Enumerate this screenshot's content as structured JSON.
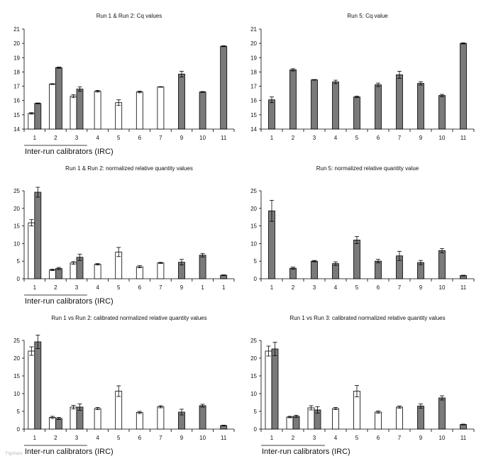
{
  "figure": {
    "watermark": "Figshare"
  },
  "colors": {
    "run_a": "#ffffff",
    "run_b": "#7a7a7a",
    "stroke": "#000000"
  },
  "chart_data": [
    {
      "id": "top-left",
      "type": "bar",
      "title": "Run 1 & Run 2: Cq values",
      "ylim": [
        14,
        21
      ],
      "yticks": [
        14,
        15,
        16,
        17,
        18,
        19,
        20,
        21
      ],
      "categories": [
        "1",
        "2",
        "3",
        "4",
        "5",
        "6",
        "7",
        "9",
        "10",
        "11"
      ],
      "series": [
        {
          "name": "Run 1",
          "color": "white",
          "values": [
            15.1,
            17.15,
            16.3,
            16.65,
            15.85,
            16.6,
            16.95,
            null,
            null,
            null
          ],
          "errors": [
            0.05,
            0.03,
            0.1,
            0.06,
            0.2,
            0.06,
            0.02,
            null,
            null,
            null
          ]
        },
        {
          "name": "Run 2",
          "color": "gray",
          "values": [
            15.8,
            18.3,
            16.8,
            null,
            null,
            null,
            null,
            17.85,
            16.6,
            19.8
          ],
          "errors": [
            0.03,
            0.04,
            0.15,
            null,
            null,
            null,
            null,
            0.2,
            0.03,
            0.03
          ]
        }
      ],
      "bracket_label": "Inter-run calibrators (IRC)",
      "bracket_count": 3
    },
    {
      "id": "top-right",
      "type": "bar",
      "title": "Run 5: Cq value",
      "ylim": [
        14,
        21
      ],
      "yticks": [
        14,
        15,
        16,
        17,
        18,
        19,
        20,
        21
      ],
      "categories": [
        "1",
        "2",
        "3",
        "4",
        "5",
        "6",
        "7",
        "9",
        "10",
        "11"
      ],
      "series": [
        {
          "name": "Run 5",
          "color": "gray",
          "values": [
            16.05,
            18.15,
            17.45,
            17.3,
            16.25,
            17.1,
            17.8,
            17.2,
            16.35,
            20.0
          ],
          "errors": [
            0.2,
            0.08,
            0.02,
            0.12,
            0.05,
            0.12,
            0.25,
            0.12,
            0.08,
            0.04
          ]
        }
      ],
      "bracket_label": "",
      "bracket_count": 0
    },
    {
      "id": "mid-left",
      "type": "bar",
      "title": "Run 1 & Run 2: normalized relative quantity values",
      "ylim": [
        0,
        25
      ],
      "yticks": [
        0,
        5,
        10,
        15,
        20,
        25
      ],
      "categories": [
        "1",
        "2",
        "3",
        "4",
        "5",
        "6",
        "7",
        "9",
        "1",
        "1"
      ],
      "series": [
        {
          "name": "Run 1",
          "color": "white",
          "values": [
            15.9,
            2.5,
            4.5,
            4.1,
            7.6,
            3.4,
            4.5,
            null,
            null,
            null
          ],
          "errors": [
            0.9,
            0.2,
            0.4,
            0.2,
            1.3,
            0.3,
            0.15,
            null,
            null,
            null
          ]
        },
        {
          "name": "Run 2",
          "color": "gray",
          "values": [
            24.6,
            2.9,
            6.1,
            null,
            null,
            null,
            null,
            4.7,
            6.7,
            1.0
          ],
          "errors": [
            1.4,
            0.3,
            0.9,
            null,
            null,
            null,
            null,
            0.8,
            0.5,
            0.1
          ]
        }
      ],
      "bracket_label": "Inter-run calibrators (IRC)",
      "bracket_count": 3
    },
    {
      "id": "mid-right",
      "type": "bar",
      "title": "Run 5: normalized relative quantity value",
      "ylim": [
        0,
        25
      ],
      "yticks": [
        0,
        5,
        10,
        15,
        20,
        25
      ],
      "categories": [
        "1",
        "2",
        "3",
        "4",
        "5",
        "6",
        "7",
        "9",
        "10",
        "11"
      ],
      "series": [
        {
          "name": "Run 5",
          "color": "gray",
          "values": [
            19.3,
            3.0,
            5.0,
            4.3,
            11.0,
            5.0,
            6.5,
            4.6,
            8.0,
            0.9
          ],
          "errors": [
            3.0,
            0.3,
            0.2,
            0.5,
            1.0,
            0.5,
            1.3,
            0.6,
            0.6,
            0.1
          ]
        }
      ],
      "bracket_label": "",
      "bracket_count": 0
    },
    {
      "id": "bottom-left",
      "type": "bar",
      "title": "Run 1 vs Run 2: calibrated  normalized relative quantity values",
      "ylim": [
        0,
        25
      ],
      "yticks": [
        0,
        5,
        10,
        15,
        20,
        25
      ],
      "categories": [
        "1",
        "2",
        "3",
        "4",
        "5",
        "6",
        "7",
        "9",
        "10",
        "11"
      ],
      "series": [
        {
          "name": "Run 1",
          "color": "white",
          "values": [
            22.0,
            3.3,
            6.2,
            5.8,
            10.7,
            4.7,
            6.3,
            null,
            null,
            null
          ],
          "errors": [
            1.2,
            0.3,
            0.5,
            0.3,
            1.5,
            0.3,
            0.3,
            null,
            null,
            null
          ]
        },
        {
          "name": "Run 2",
          "color": "gray",
          "values": [
            24.6,
            3.0,
            6.2,
            null,
            null,
            null,
            null,
            4.8,
            6.6,
            1.0
          ],
          "errors": [
            1.9,
            0.3,
            0.9,
            null,
            null,
            null,
            null,
            0.8,
            0.4,
            0.1
          ]
        }
      ],
      "bracket_label": "Inter-run calibrators (IRC)",
      "bracket_count": 3
    },
    {
      "id": "bottom-right",
      "type": "bar",
      "title": "Run 1 vs Run 3: calibrated  normalized relative quantity values",
      "ylim": [
        0,
        25
      ],
      "yticks": [
        0,
        5,
        10,
        15,
        20,
        25
      ],
      "categories": [
        "1",
        "2",
        "3",
        "4",
        "5",
        "6",
        "7",
        "9",
        "10",
        "11"
      ],
      "series": [
        {
          "name": "Run 1",
          "color": "white",
          "values": [
            22.0,
            3.4,
            6.0,
            5.8,
            10.7,
            4.8,
            6.2,
            null,
            null,
            null
          ],
          "errors": [
            1.4,
            0.2,
            0.6,
            0.3,
            1.6,
            0.3,
            0.3,
            null,
            null,
            null
          ]
        },
        {
          "name": "Run 3",
          "color": "gray",
          "values": [
            22.6,
            3.6,
            5.4,
            null,
            null,
            null,
            null,
            6.5,
            8.8,
            1.3
          ],
          "errors": [
            1.9,
            0.3,
            0.9,
            null,
            null,
            null,
            null,
            0.6,
            0.6,
            0.1
          ]
        }
      ],
      "bracket_label": "Inter-run calibrators (IRC)",
      "bracket_count": 3
    }
  ]
}
